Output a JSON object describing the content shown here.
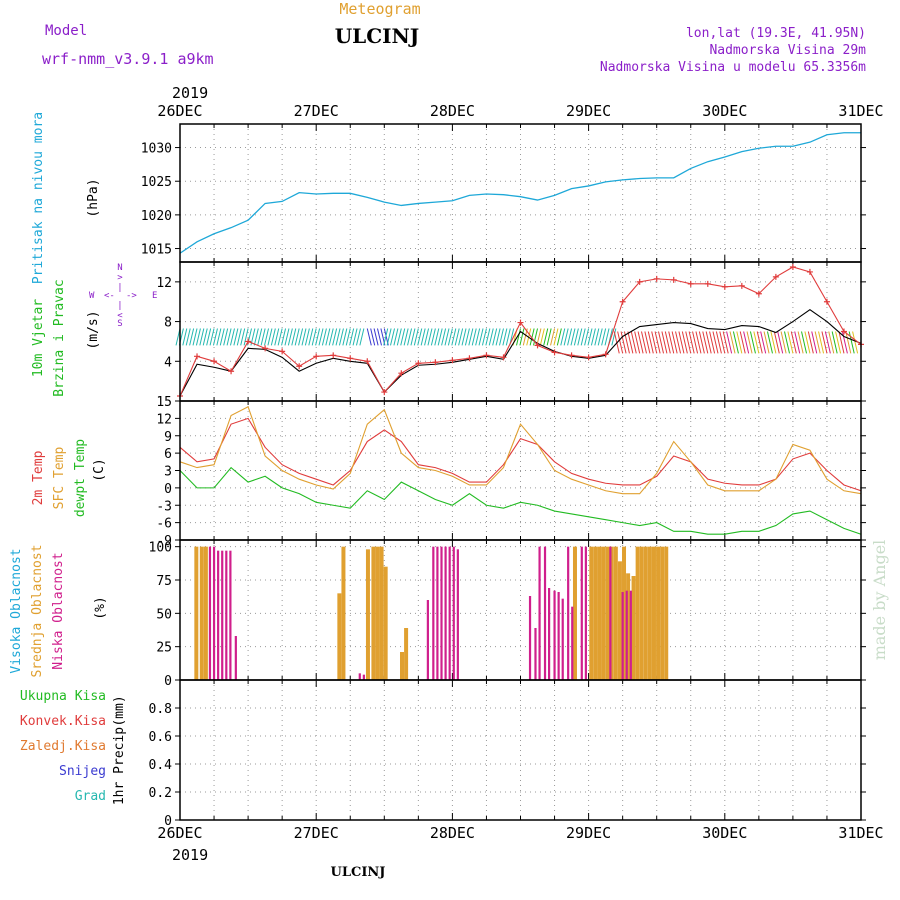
{
  "header": {
    "model_label": "Model",
    "model_name": "wrf-nmm_v3.9.1  a9km",
    "title_small": "Meteogram",
    "title_station": "ULCINJ",
    "coords": "lon,lat (19.3E, 41.95N)",
    "elevation": "Nadmorska Visina 29m",
    "model_elevation": "Nadmorska Visina u modelu 65.3356m",
    "footer_station": "ULCINJ",
    "credit": "made by Angel"
  },
  "colors": {
    "purple": "#8b1fc9",
    "orange": "#e0a030",
    "cyan": "#1ea8d8",
    "green": "#22bb22",
    "red": "#e03c3c",
    "magenta": "#d01f8c",
    "teal": "#26b8b0",
    "blue": "#3a3ad0",
    "grid": "#9a9a9a"
  },
  "time_axis": {
    "year": "2019",
    "labels": [
      "26DEC",
      "27DEC",
      "28DEC",
      "29DEC",
      "30DEC",
      "31DEC"
    ]
  },
  "chart_data": [
    {
      "id": "pressure",
      "type": "line",
      "ylabel": [
        "Pritisak na nivou mora",
        "(hPa)"
      ],
      "ylim": [
        1013,
        1033.5
      ],
      "yticks": [
        1015,
        1020,
        1025,
        1030
      ],
      "grid": true,
      "series": [
        {
          "x": [
            0,
            0.125,
            0.25,
            0.375,
            0.5,
            0.625,
            0.75,
            0.875,
            1.0,
            1.125,
            1.25,
            1.375,
            1.5,
            1.625,
            1.75,
            1.875,
            2.0,
            2.125,
            2.25,
            2.375,
            2.5,
            2.625,
            2.75,
            2.875,
            3.0,
            3.125,
            3.25,
            3.375,
            3.5,
            3.625,
            3.75,
            3.875,
            4.0,
            4.125,
            4.25,
            4.375,
            4.5,
            4.625,
            4.75,
            4.875,
            5.0
          ],
          "values": [
            1014.3,
            1016.0,
            1017.2,
            1018.1,
            1019.2,
            1021.7,
            1022.0,
            1023.3,
            1023.1,
            1023.2,
            1023.2,
            1022.6,
            1021.9,
            1021.4,
            1021.7,
            1021.9,
            1022.1,
            1022.9,
            1023.1,
            1023.0,
            1022.7,
            1022.2,
            1022.9,
            1023.9,
            1024.3,
            1024.9,
            1025.2,
            1025.4,
            1025.5,
            1025.5,
            1026.9,
            1027.9,
            1028.6,
            1029.4,
            1029.9,
            1030.2,
            1030.2,
            1030.8,
            1031.9,
            1032.2,
            1032.2
          ]
        }
      ]
    },
    {
      "id": "wind",
      "type": "line",
      "ylabel": [
        "10m Vjetar",
        "Brzina i Pravac",
        "(m/s)"
      ],
      "compass": {
        "n": "N",
        "w": "W",
        "e": "E",
        "s": "S"
      },
      "ylim": [
        0,
        14
      ],
      "yticks": [
        4,
        8,
        12
      ],
      "grid": true,
      "series": [
        {
          "name": "speed",
          "x": [
            0,
            0.125,
            0.25,
            0.375,
            0.5,
            0.625,
            0.75,
            0.875,
            1.0,
            1.125,
            1.25,
            1.375,
            1.5,
            1.625,
            1.75,
            1.875,
            2.0,
            2.125,
            2.25,
            2.375,
            2.5,
            2.625,
            2.75,
            2.875,
            3.0,
            3.125,
            3.25,
            3.375,
            3.5,
            3.625,
            3.75,
            3.875,
            4.0,
            4.125,
            4.25,
            4.375,
            4.5,
            4.625,
            4.75,
            4.875,
            5.0
          ],
          "values": [
            0.5,
            3.7,
            3.4,
            3.0,
            5.3,
            5.2,
            4.4,
            3.0,
            3.8,
            4.3,
            4.0,
            3.8,
            0.9,
            2.6,
            3.6,
            3.7,
            3.9,
            4.2,
            4.5,
            4.2,
            7.0,
            5.8,
            5.0,
            4.5,
            4.3,
            4.6,
            6.5,
            7.5,
            7.7,
            7.9,
            7.8,
            7.3,
            7.2,
            7.6,
            7.5,
            6.9,
            8.0,
            9.2,
            8.0,
            6.5,
            5.8
          ]
        },
        {
          "name": "gust",
          "x": [
            0,
            0.125,
            0.25,
            0.375,
            0.5,
            0.625,
            0.75,
            0.875,
            1.0,
            1.125,
            1.25,
            1.375,
            1.5,
            1.625,
            1.75,
            1.875,
            2.0,
            2.125,
            2.25,
            2.375,
            2.5,
            2.625,
            2.75,
            2.875,
            3.0,
            3.125,
            3.25,
            3.375,
            3.5,
            3.625,
            3.75,
            3.875,
            4.0,
            4.125,
            4.25,
            4.375,
            4.5,
            4.625,
            4.75,
            4.875,
            5.0
          ],
          "values": [
            0.5,
            4.5,
            4.0,
            3.0,
            6.0,
            5.3,
            5.0,
            3.5,
            4.5,
            4.6,
            4.3,
            4.0,
            0.9,
            2.8,
            3.8,
            3.9,
            4.1,
            4.3,
            4.6,
            4.4,
            7.9,
            5.6,
            4.9,
            4.6,
            4.4,
            4.7,
            10.0,
            12.0,
            12.3,
            12.2,
            11.8,
            11.8,
            11.5,
            11.6,
            10.8,
            12.5,
            13.5,
            13.0,
            10.0,
            7.0,
            5.7
          ]
        }
      ]
    },
    {
      "id": "temperature",
      "type": "line",
      "ylabel": [
        "2m Temp",
        "SFC Temp",
        "dewpt Temp",
        "(C)"
      ],
      "ylim": [
        -9,
        15
      ],
      "yticks": [
        -9,
        -6,
        -3,
        0,
        3,
        6,
        9,
        12,
        15
      ],
      "grid": true,
      "series": [
        {
          "name": "2m Temp",
          "x": [
            0,
            0.125,
            0.25,
            0.375,
            0.5,
            0.625,
            0.75,
            0.875,
            1.0,
            1.125,
            1.25,
            1.375,
            1.5,
            1.625,
            1.75,
            1.875,
            2.0,
            2.125,
            2.25,
            2.375,
            2.5,
            2.625,
            2.75,
            2.875,
            3.0,
            3.125,
            3.25,
            3.375,
            3.5,
            3.625,
            3.75,
            3.875,
            4.0,
            4.125,
            4.25,
            4.375,
            4.5,
            4.625,
            4.75,
            4.875,
            5.0
          ],
          "values": [
            7.0,
            4.5,
            5.0,
            11.0,
            12.0,
            7.0,
            4.0,
            2.5,
            1.5,
            0.5,
            3.0,
            8.0,
            10.0,
            8.0,
            4.0,
            3.5,
            2.5,
            1.0,
            1.0,
            4.0,
            8.5,
            7.5,
            4.5,
            2.5,
            1.5,
            0.8,
            0.5,
            0.5,
            2.0,
            5.5,
            4.5,
            1.5,
            0.8,
            0.5,
            0.5,
            1.5,
            5.0,
            6.0,
            3.0,
            0.5,
            -0.5
          ]
        },
        {
          "name": "SFC Temp",
          "x": [
            0,
            0.125,
            0.25,
            0.375,
            0.5,
            0.625,
            0.75,
            0.875,
            1.0,
            1.125,
            1.25,
            1.375,
            1.5,
            1.625,
            1.75,
            1.875,
            2.0,
            2.125,
            2.25,
            2.375,
            2.5,
            2.625,
            2.75,
            2.875,
            3.0,
            3.125,
            3.25,
            3.375,
            3.5,
            3.625,
            3.75,
            3.875,
            4.0,
            4.125,
            4.25,
            4.375,
            4.5,
            4.625,
            4.75,
            4.875,
            5.0
          ],
          "values": [
            4.5,
            3.5,
            4.0,
            12.5,
            14.0,
            5.5,
            3.0,
            1.5,
            0.5,
            -0.2,
            2.5,
            11.0,
            13.5,
            6.0,
            3.5,
            3.0,
            2.0,
            0.5,
            0.5,
            3.5,
            11.0,
            7.5,
            3.0,
            1.5,
            0.5,
            -0.5,
            -1.0,
            -1.0,
            2.5,
            8.0,
            4.5,
            0.5,
            -0.5,
            -0.5,
            -0.5,
            1.5,
            7.5,
            6.5,
            1.5,
            -0.5,
            -1.0
          ]
        },
        {
          "name": "dewpt Temp",
          "x": [
            0,
            0.125,
            0.25,
            0.375,
            0.5,
            0.625,
            0.75,
            0.875,
            1.0,
            1.125,
            1.25,
            1.375,
            1.5,
            1.625,
            1.75,
            1.875,
            2.0,
            2.125,
            2.25,
            2.375,
            2.5,
            2.625,
            2.75,
            2.875,
            3.0,
            3.125,
            3.25,
            3.375,
            3.5,
            3.625,
            3.75,
            3.875,
            4.0,
            4.125,
            4.25,
            4.375,
            4.5,
            4.625,
            4.75,
            4.875,
            5.0
          ],
          "values": [
            3.0,
            0.0,
            0.0,
            3.5,
            1.0,
            2.0,
            0.0,
            -1.0,
            -2.5,
            -3.0,
            -3.5,
            -0.5,
            -2.0,
            1.0,
            -0.5,
            -2.0,
            -3.0,
            -1.0,
            -3.0,
            -3.5,
            -2.5,
            -3.0,
            -4.0,
            -4.5,
            -5.0,
            -5.5,
            -6.0,
            -6.5,
            -6.0,
            -7.5,
            -7.5,
            -8.0,
            -8.0,
            -7.5,
            -7.5,
            -6.5,
            -4.5,
            -4.0,
            -5.5,
            -7.0,
            -8.0
          ]
        }
      ]
    },
    {
      "id": "clouds",
      "type": "bar",
      "ylabel": [
        "Visoka Oblacnost",
        "Srednja Oblacnost",
        "Niska Oblacnost",
        "(%)"
      ],
      "ylim": [
        0,
        105
      ],
      "yticks": [
        0,
        25,
        50,
        75,
        100
      ],
      "grid": true,
      "series": [
        {
          "name": "Srednja Oblacnost",
          "x": [
            0.12,
            0.16,
            0.19,
            1.17,
            1.2,
            1.38,
            1.42,
            1.45,
            1.48,
            1.51,
            1.63,
            1.66,
            2.9,
            3.02,
            3.05,
            3.08,
            3.11,
            3.14,
            3.17,
            3.2,
            3.23,
            3.26,
            3.29,
            3.33,
            3.36,
            3.39,
            3.42,
            3.45,
            3.48,
            3.51,
            3.54,
            3.57
          ],
          "values": [
            100,
            100,
            100,
            65,
            100,
            98,
            100,
            100,
            100,
            85,
            21,
            39,
            100,
            100,
            100,
            100,
            100,
            100,
            100,
            100,
            89,
            100,
            80,
            78,
            100,
            100,
            100,
            100,
            100,
            100,
            100,
            100
          ]
        },
        {
          "name": "Niska Oblacnost",
          "x": [
            0.22,
            0.25,
            0.28,
            0.31,
            0.34,
            0.37,
            0.41,
            1.32,
            1.35,
            1.82,
            1.86,
            1.89,
            1.92,
            1.95,
            1.98,
            2.01,
            2.04,
            2.57,
            2.61,
            2.64,
            2.68,
            2.71,
            2.75,
            2.78,
            2.81,
            2.85,
            2.88,
            2.95,
            2.98,
            3.16,
            3.25,
            3.28,
            3.31
          ],
          "values": [
            100,
            100,
            97,
            97,
            97,
            97,
            33,
            5,
            4,
            60,
            100,
            100,
            100,
            100,
            100,
            100,
            98,
            63,
            39,
            100,
            100,
            69,
            67,
            66,
            61,
            100,
            55,
            100,
            100,
            100,
            66,
            67,
            67
          ]
        }
      ]
    },
    {
      "id": "precip",
      "type": "line",
      "ylabel": [
        "1hr Precip",
        "(mm)"
      ],
      "legend": [
        "Ukupna Kisa",
        "Konvek.Kisa",
        "Zaledj.Kisa",
        "Snijeg",
        "Grad"
      ],
      "ylim": [
        0,
        1.0
      ],
      "yticks": [
        0,
        0.2,
        0.4,
        0.6,
        0.8
      ],
      "grid": true,
      "series": []
    }
  ]
}
